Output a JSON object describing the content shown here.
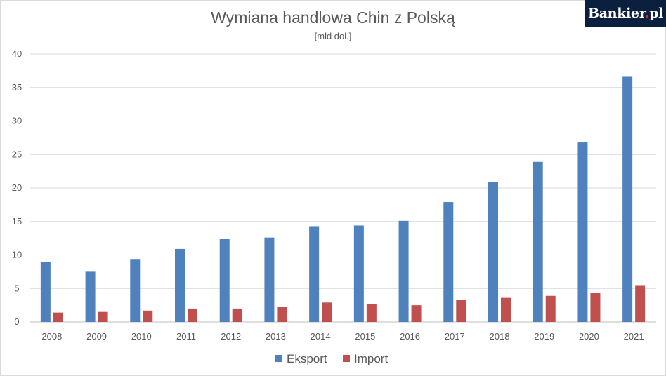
{
  "logo": {
    "name": "Bankier",
    "dot": ".",
    "tld": "pl",
    "colors": {
      "background": "#0b1f3f",
      "text": "#ffffff",
      "dot": "#e2231a"
    }
  },
  "chart_data": {
    "type": "bar",
    "title": "Wymiana handlowa Chin z Polską",
    "subtitle": "[mld dol.]",
    "xlabel": "",
    "ylabel": "",
    "categories": [
      "2008",
      "2009",
      "2010",
      "2011",
      "2012",
      "2013",
      "2014",
      "2015",
      "2016",
      "2017",
      "2018",
      "2019",
      "2020",
      "2021"
    ],
    "series": [
      {
        "name": "Eksport",
        "color": "#4f81bd",
        "values": [
          9.0,
          7.5,
          9.4,
          10.9,
          12.4,
          12.6,
          14.3,
          14.4,
          15.1,
          17.9,
          20.9,
          23.9,
          26.8,
          36.6
        ]
      },
      {
        "name": "Import",
        "color": "#c0504d",
        "values": [
          1.4,
          1.5,
          1.7,
          2.0,
          2.0,
          2.2,
          2.9,
          2.7,
          2.5,
          3.3,
          3.6,
          3.9,
          4.3,
          5.5
        ]
      }
    ],
    "ylim": [
      0,
      40
    ],
    "yticks": [
      0,
      5,
      10,
      15,
      20,
      25,
      30,
      35,
      40
    ],
    "grid": true,
    "legend_position": "bottom"
  }
}
